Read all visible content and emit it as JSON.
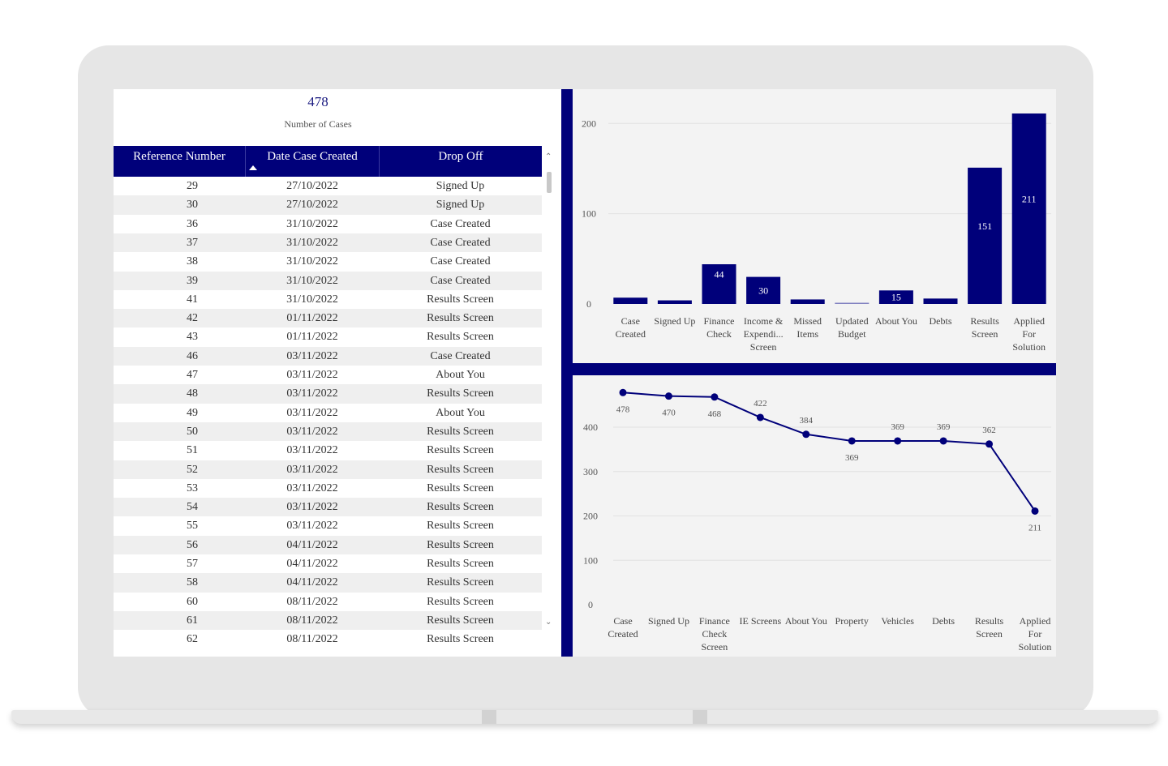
{
  "kpi": {
    "value": "478",
    "label": "Number of Cases"
  },
  "table": {
    "columns": [
      "Reference Number",
      "Date Case Created",
      "Drop Off"
    ],
    "rows": [
      [
        "29",
        "27/10/2022",
        "Signed Up"
      ],
      [
        "30",
        "27/10/2022",
        "Signed Up"
      ],
      [
        "36",
        "31/10/2022",
        "Case Created"
      ],
      [
        "37",
        "31/10/2022",
        "Case Created"
      ],
      [
        "38",
        "31/10/2022",
        "Case Created"
      ],
      [
        "39",
        "31/10/2022",
        "Case Created"
      ],
      [
        "41",
        "31/10/2022",
        "Results Screen"
      ],
      [
        "42",
        "01/11/2022",
        "Results Screen"
      ],
      [
        "43",
        "01/11/2022",
        "Results Screen"
      ],
      [
        "46",
        "03/11/2022",
        "Case Created"
      ],
      [
        "47",
        "03/11/2022",
        "About You"
      ],
      [
        "48",
        "03/11/2022",
        "Results Screen"
      ],
      [
        "49",
        "03/11/2022",
        "About You"
      ],
      [
        "50",
        "03/11/2022",
        "Results Screen"
      ],
      [
        "51",
        "03/11/2022",
        "Results Screen"
      ],
      [
        "52",
        "03/11/2022",
        "Results Screen"
      ],
      [
        "53",
        "03/11/2022",
        "Results Screen"
      ],
      [
        "54",
        "03/11/2022",
        "Results Screen"
      ],
      [
        "55",
        "03/11/2022",
        "Results Screen"
      ],
      [
        "56",
        "04/11/2022",
        "Results Screen"
      ],
      [
        "57",
        "04/11/2022",
        "Results Screen"
      ],
      [
        "58",
        "04/11/2022",
        "Results Screen"
      ],
      [
        "60",
        "08/11/2022",
        "Results Screen"
      ],
      [
        "61",
        "08/11/2022",
        "Results Screen"
      ],
      [
        "62",
        "08/11/2022",
        "Results Screen"
      ]
    ]
  },
  "icons": {
    "sort": "sort-ascending-icon",
    "scroll_up": "scroll-up-icon",
    "scroll_down": "scroll-down-icon"
  },
  "colors": {
    "accent": "#00007a",
    "panel": "#f3f3f3"
  },
  "chart_data": [
    {
      "type": "bar",
      "categories": [
        "Case Created",
        "Signed Up",
        "Finance Check",
        "Income & Expendi... Screen",
        "Missed Items",
        "Updated Budget",
        "About You",
        "Debts",
        "Results Screen",
        "Applied For Solution"
      ],
      "values": [
        7,
        4,
        44,
        30,
        5,
        1,
        15,
        6,
        151,
        211
      ],
      "data_labels": [
        "",
        "",
        "44",
        "30",
        "",
        "",
        "15",
        "",
        "151",
        "211"
      ],
      "ylim": [
        0,
        220
      ],
      "yticks": [
        0,
        100,
        200
      ],
      "grid": true
    },
    {
      "type": "line",
      "categories": [
        "Case Created",
        "Signed Up",
        "Finance Check Screen",
        "IE Screens",
        "About You",
        "Property",
        "Vehicles",
        "Debts",
        "Results Screen",
        "Applied For Solution"
      ],
      "values": [
        478,
        470,
        468,
        422,
        384,
        369,
        369,
        369,
        362,
        211
      ],
      "data_labels": [
        "478",
        "470",
        "468",
        "422",
        "384",
        "369",
        "369",
        "369",
        "362",
        "211"
      ],
      "label_below": [
        true,
        true,
        true,
        false,
        false,
        true,
        false,
        false,
        false,
        true
      ],
      "ylim": [
        0,
        500
      ],
      "yticks": [
        0,
        100,
        200,
        300,
        400
      ],
      "grid": true
    }
  ]
}
